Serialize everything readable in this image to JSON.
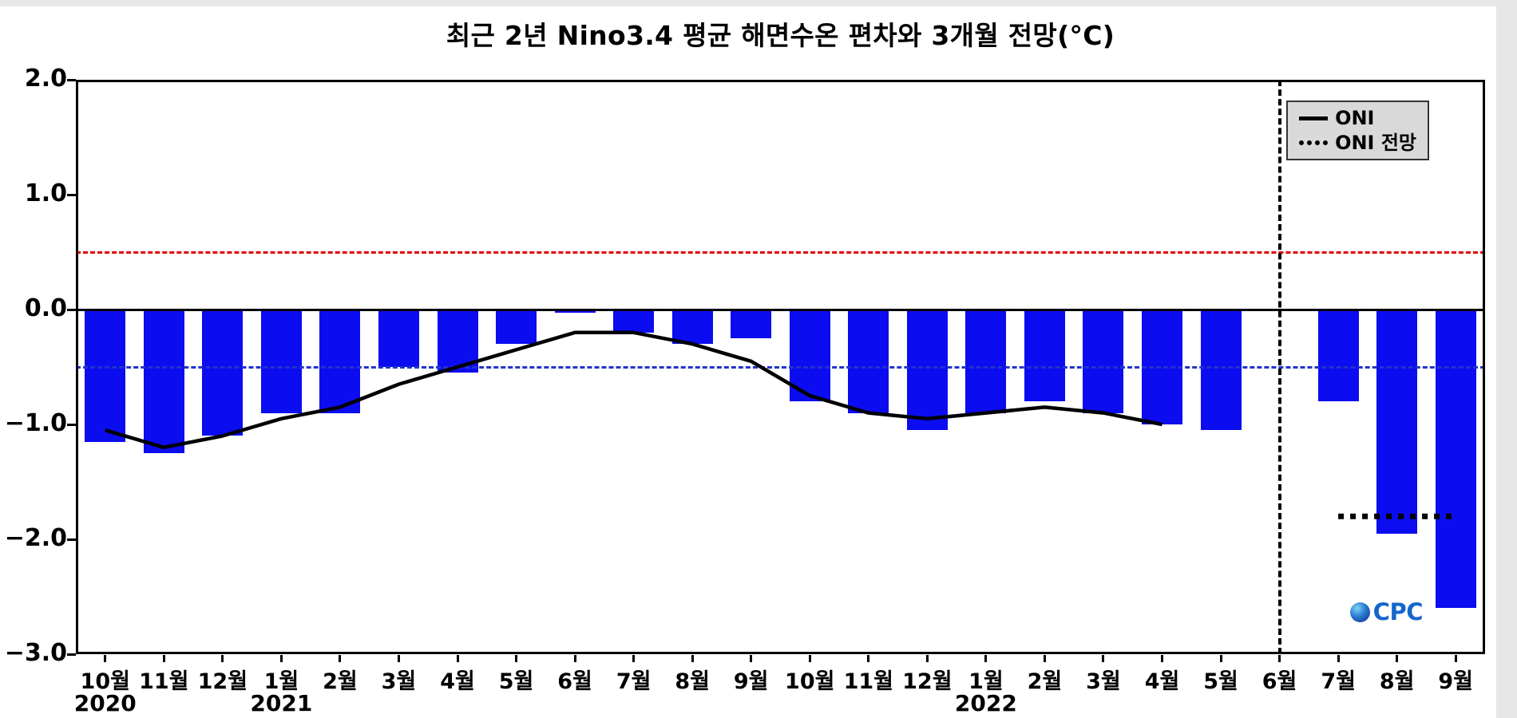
{
  "watermark": "CPC",
  "chart_data": {
    "type": "bar",
    "title": "최근 2년 Nino3.4 평균 해면수온 편차와 3개월 전망(°C)",
    "xlabel": "",
    "ylabel": "",
    "ylim": [
      -3.0,
      2.0
    ],
    "yticks": [
      2.0,
      1.0,
      0.0,
      -1.0,
      -2.0,
      -3.0
    ],
    "grid": false,
    "legend_position": "top-right",
    "categories": [
      "10월",
      "11월",
      "12월",
      "1월",
      "2월",
      "3월",
      "4월",
      "5월",
      "6월",
      "7월",
      "8월",
      "9월",
      "10월",
      "11월",
      "12월",
      "1월",
      "2월",
      "3월",
      "4월",
      "5월",
      "6월",
      "7월",
      "8월",
      "9월"
    ],
    "year_labels": [
      {
        "index": 0,
        "label": "2020"
      },
      {
        "index": 3,
        "label": "2021"
      },
      {
        "index": 15,
        "label": "2022"
      }
    ],
    "bar_values": [
      -1.15,
      -1.25,
      -1.1,
      -0.9,
      -0.9,
      -0.5,
      -0.55,
      -0.3,
      -0.03,
      -0.2,
      -0.3,
      -0.25,
      -0.8,
      -0.9,
      -1.05,
      -0.9,
      -0.8,
      -0.9,
      -1.0,
      -1.05,
      null,
      -0.8,
      -1.95,
      -2.6
    ],
    "line_series": [
      {
        "name": "ONI",
        "style": "solid",
        "x_index": [
          0,
          1,
          2,
          3,
          4,
          5,
          6,
          7,
          8,
          9,
          10,
          11,
          12,
          13,
          14,
          15,
          16,
          17,
          18
        ],
        "values": [
          -1.05,
          -1.2,
          -1.1,
          -0.95,
          -0.85,
          -0.65,
          -0.5,
          -0.35,
          -0.2,
          -0.2,
          -0.3,
          -0.45,
          -0.75,
          -0.9,
          -0.95,
          -0.9,
          -0.85,
          -0.9,
          -1.0
        ]
      },
      {
        "name": "ONI 전망",
        "style": "dotted",
        "x_index": [
          21,
          22,
          23
        ],
        "values": [
          -1.8,
          -1.8,
          -1.8
        ]
      }
    ],
    "reference_lines": {
      "elnino_threshold": 0.5,
      "lanina_threshold": -0.5,
      "zero": 0.0
    },
    "forecast_divider_index": 20,
    "colors": {
      "bar": "#0c0cf0",
      "oni_line": "#000000",
      "elnino_line": "#e00000",
      "lanina_line": "#2233cc",
      "divider": "#000000"
    }
  }
}
